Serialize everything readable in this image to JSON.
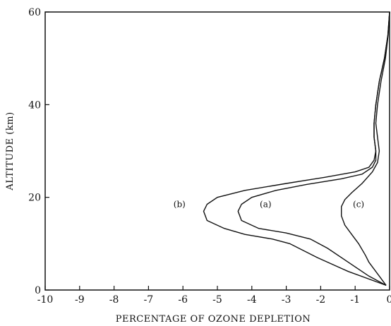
{
  "chart_data": {
    "type": "line",
    "xlabel": "PERCENTAGE OF OZONE DEPLETION",
    "ylabel": "ALTITUDE (km)",
    "xlim": [
      -10,
      0
    ],
    "ylim": [
      0,
      60
    ],
    "xticks": [
      -10,
      -9,
      -8,
      -7,
      -6,
      -5,
      -4,
      -3,
      -2,
      -1,
      0
    ],
    "yticks": [
      0,
      20,
      40,
      60
    ],
    "grid": false,
    "series": [
      {
        "name": "(a)",
        "label_at": [
          -3.6,
          18.5
        ],
        "points": [
          [
            -0.1,
            1
          ],
          [
            -0.6,
            3
          ],
          [
            -1.2,
            6
          ],
          [
            -1.8,
            9
          ],
          [
            -2.3,
            11
          ],
          [
            -3.0,
            12.3
          ],
          [
            -3.8,
            13.3
          ],
          [
            -4.3,
            15
          ],
          [
            -4.4,
            17
          ],
          [
            -4.3,
            18.5
          ],
          [
            -4.0,
            20
          ],
          [
            -3.3,
            21.5
          ],
          [
            -2.4,
            22.8
          ],
          [
            -1.4,
            24
          ],
          [
            -0.8,
            25
          ],
          [
            -0.5,
            26.5
          ],
          [
            -0.4,
            28
          ],
          [
            -0.4,
            30
          ],
          [
            -0.45,
            33
          ],
          [
            -0.45,
            36
          ],
          [
            -0.4,
            40
          ],
          [
            -0.3,
            45
          ],
          [
            -0.15,
            50
          ],
          [
            -0.05,
            55
          ],
          [
            0,
            60
          ]
        ]
      },
      {
        "name": "(b)",
        "label_at": [
          -6.1,
          18.5
        ],
        "points": [
          [
            -0.1,
            1
          ],
          [
            -1.2,
            4
          ],
          [
            -2.1,
            7
          ],
          [
            -2.9,
            10
          ],
          [
            -3.4,
            11
          ],
          [
            -4.2,
            12
          ],
          [
            -4.8,
            13.3
          ],
          [
            -5.3,
            15
          ],
          [
            -5.4,
            17
          ],
          [
            -5.3,
            18.5
          ],
          [
            -5.0,
            20
          ],
          [
            -4.2,
            21.5
          ],
          [
            -3.0,
            23
          ],
          [
            -1.9,
            24.3
          ],
          [
            -1.0,
            25.5
          ],
          [
            -0.6,
            26.5
          ],
          [
            -0.45,
            28
          ],
          [
            -0.4,
            30
          ],
          [
            -0.45,
            33
          ],
          [
            -0.45,
            36
          ],
          [
            -0.4,
            40
          ],
          [
            -0.3,
            45
          ],
          [
            -0.15,
            50
          ],
          [
            -0.05,
            55
          ],
          [
            0,
            60
          ]
        ]
      },
      {
        "name": "(c)",
        "label_at": [
          -0.9,
          18.5
        ],
        "points": [
          [
            -0.1,
            1
          ],
          [
            -0.3,
            3
          ],
          [
            -0.6,
            6
          ],
          [
            -0.7,
            7.5
          ],
          [
            -0.9,
            10
          ],
          [
            -1.1,
            12
          ],
          [
            -1.3,
            14
          ],
          [
            -1.4,
            16
          ],
          [
            -1.4,
            18
          ],
          [
            -1.3,
            19.5
          ],
          [
            -1.1,
            21
          ],
          [
            -0.8,
            23
          ],
          [
            -0.5,
            25.5
          ],
          [
            -0.35,
            27.5
          ],
          [
            -0.3,
            30
          ],
          [
            -0.35,
            33
          ],
          [
            -0.4,
            36
          ],
          [
            -0.35,
            40
          ],
          [
            -0.25,
            45
          ],
          [
            -0.12,
            50
          ],
          [
            -0.04,
            55
          ],
          [
            0,
            60
          ]
        ]
      }
    ]
  }
}
